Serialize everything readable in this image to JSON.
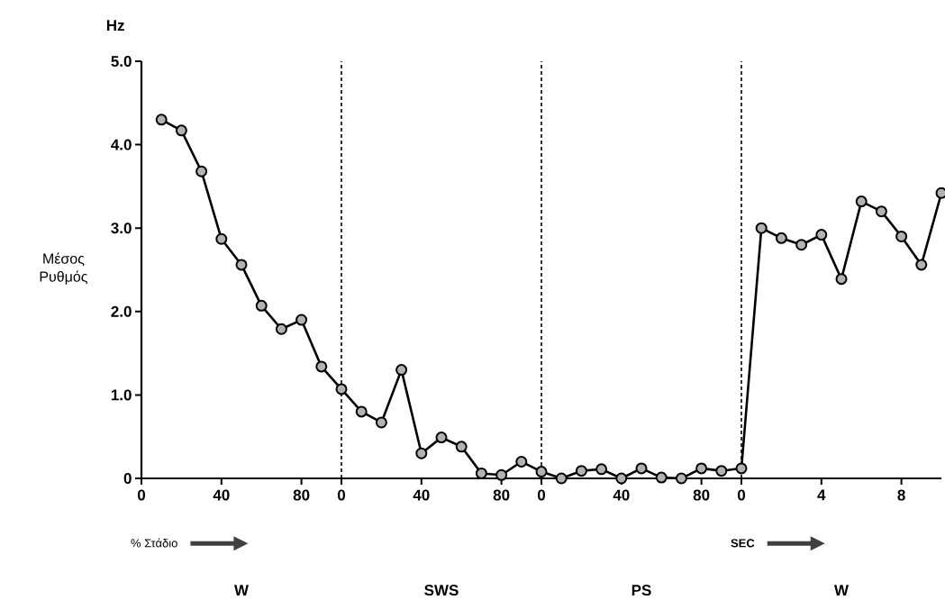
{
  "chart_data": [
    {
      "type": "line",
      "ylabel": "Μέσος Ρυθμός",
      "annotations": [
        "Hz",
        "% Στάδιο",
        "W"
      ],
      "x": [
        10,
        20,
        30,
        40,
        50,
        60,
        70,
        80,
        90
      ],
      "values": [
        4.3,
        4.17,
        3.68,
        2.87,
        2.56,
        2.07,
        1.79,
        1.9,
        1.34
      ],
      "color": "#000000",
      "marker": "circle",
      "line_style": "solid",
      "xlim": [
        0,
        100
      ],
      "xticks": [
        0,
        40,
        80
      ],
      "ylim": [
        0,
        5
      ],
      "yticks": [
        0,
        {
          "value": 1,
          "label": "1.0"
        },
        {
          "value": 2,
          "label": "2.0"
        },
        {
          "value": 3,
          "label": "3.0"
        },
        {
          "value": 4,
          "label": "4.0"
        },
        {
          "value": 5,
          "label": "5.0"
        }
      ]
    },
    {
      "type": "line",
      "annotations": [
        "SWS"
      ],
      "x": [
        0,
        10,
        20,
        30,
        40,
        50,
        60,
        70,
        80,
        90
      ],
      "values": [
        1.07,
        0.8,
        0.67,
        1.3,
        0.3,
        0.49,
        0.38,
        0.06,
        0.04,
        0.2
      ],
      "color": "#000000",
      "marker": "circle",
      "line_style": "solid",
      "xlim": [
        0,
        100
      ],
      "xticks": [
        0,
        40,
        80
      ],
      "ylim": [
        0,
        5
      ],
      "tick_labels": "x",
      "ref_lines": [
        {
          "axis": "x",
          "value": 0,
          "line_style": "dashed"
        }
      ]
    },
    {
      "type": "line",
      "annotations": [
        "PS"
      ],
      "x": [
        0,
        10,
        20,
        30,
        40,
        50,
        60,
        70,
        80,
        90
      ],
      "values": [
        0.08,
        0,
        0.09,
        0.11,
        0,
        0.12,
        0.01,
        0,
        0.12,
        0.09
      ],
      "color": "#000000",
      "marker": "circle",
      "line_style": "solid",
      "xlim": [
        0,
        100
      ],
      "xticks": [
        0,
        40,
        80
      ],
      "ylim": [
        0,
        5
      ],
      "tick_labels": "x",
      "ref_lines": [
        {
          "axis": "x",
          "value": 0,
          "line_style": "dashed"
        }
      ]
    },
    {
      "type": "line",
      "annotations": [
        "SEC",
        "W"
      ],
      "x": [
        0,
        1,
        2,
        3,
        4,
        5,
        6,
        7,
        8,
        9,
        10
      ],
      "values": [
        0.12,
        3.0,
        2.88,
        2.8,
        2.92,
        2.39,
        3.32,
        3.2,
        2.9,
        2.56,
        3.42
      ],
      "color": "#000000",
      "marker": "circle",
      "line_style": "solid",
      "xlim": [
        0,
        10
      ],
      "xticks": [
        0,
        4,
        8
      ],
      "ylim": [
        0,
        5
      ],
      "tick_labels": "x",
      "ref_lines": [
        {
          "axis": "x",
          "value": 0,
          "line_style": "dashed"
        }
      ]
    }
  ]
}
